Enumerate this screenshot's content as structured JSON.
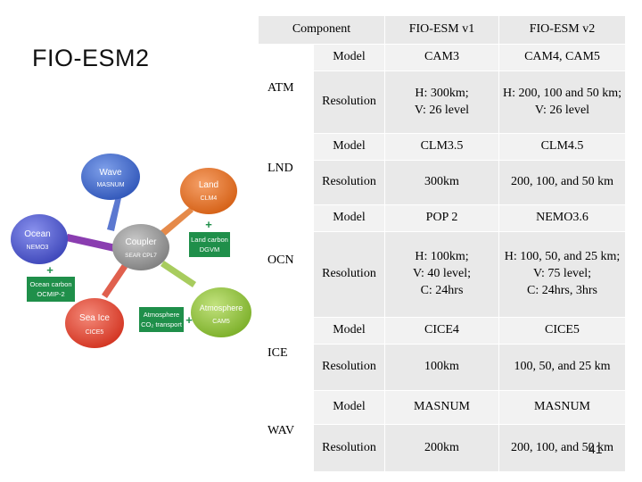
{
  "slide": {
    "title": "FIO-ESM2",
    "page_number": "41"
  },
  "diagram": {
    "center": {
      "label1": "Coupler",
      "label2": "SEAR CPL7"
    },
    "wave": {
      "label1": "Wave",
      "label2": "MASNUM"
    },
    "land": {
      "label1": "Land",
      "label2": "CLM4"
    },
    "ocean": {
      "label1": "Ocean",
      "label2": "NEMO3"
    },
    "seaice": {
      "label1": "Sea Ice",
      "label2": "CICE5"
    },
    "atmosphere": {
      "label1": "Atmosphere",
      "label2": "CAM5"
    },
    "land_carbon": {
      "label1": "Land carbon",
      "label2": "DGVM"
    },
    "ocean_carbon": {
      "label1": "Ocean carbon",
      "label2": "OCMIP-2"
    },
    "atm_co2": {
      "label1": "Atmosphere",
      "label2": "CO₂ transport"
    },
    "colors": {
      "wave": "#3b63c4",
      "land": "#e06a1e",
      "ocean": "#4b55c8",
      "seaice": "#e0402e",
      "atmosphere": "#8fc23a",
      "coupler": "#8a8a8a",
      "box": "#1f8f4a"
    }
  },
  "table": {
    "headers": {
      "component": "Component",
      "v1": "FIO-ESM v1",
      "v2": "FIO-ESM v2"
    },
    "rows": [
      {
        "category": "ATM",
        "model": {
          "label": "Model",
          "v1": "CAM3",
          "v2": "CAM4, CAM5"
        },
        "resolution": {
          "label": "Resolution",
          "v1": "H: 300km;\nV: 26 level",
          "v2": "H: 200, 100 and 50 km;\nV: 26 level"
        }
      },
      {
        "category": "LND",
        "model": {
          "label": "Model",
          "v1": "CLM3.5",
          "v2": "CLM4.5"
        },
        "resolution": {
          "label": "Resolution",
          "v1": "300km",
          "v2": "200, 100, and 50 km"
        }
      },
      {
        "category": "OCN",
        "model": {
          "label": "Model",
          "v1": "POP 2",
          "v2": "NEMO3.6"
        },
        "resolution": {
          "label": "Resolution",
          "v1": "H: 100km;\nV: 40 level;\nC: 24hrs",
          "v2": "H: 100, 50, and 25 km;\nV: 75 level;\nC: 24hrs, 3hrs"
        }
      },
      {
        "category": "ICE",
        "model": {
          "label": "Model",
          "v1": "CICE4",
          "v2": "CICE5"
        },
        "resolution": {
          "label": "Resolution",
          "v1": "100km",
          "v2": "100, 50, and 25 km"
        }
      },
      {
        "category": "WAV",
        "model": {
          "label": "Model",
          "v1": "MASNUM",
          "v2": "MASNUM"
        },
        "resolution": {
          "label": "Resolution",
          "v1": "200km",
          "v2": "200, 100, and 50 km"
        }
      }
    ]
  }
}
